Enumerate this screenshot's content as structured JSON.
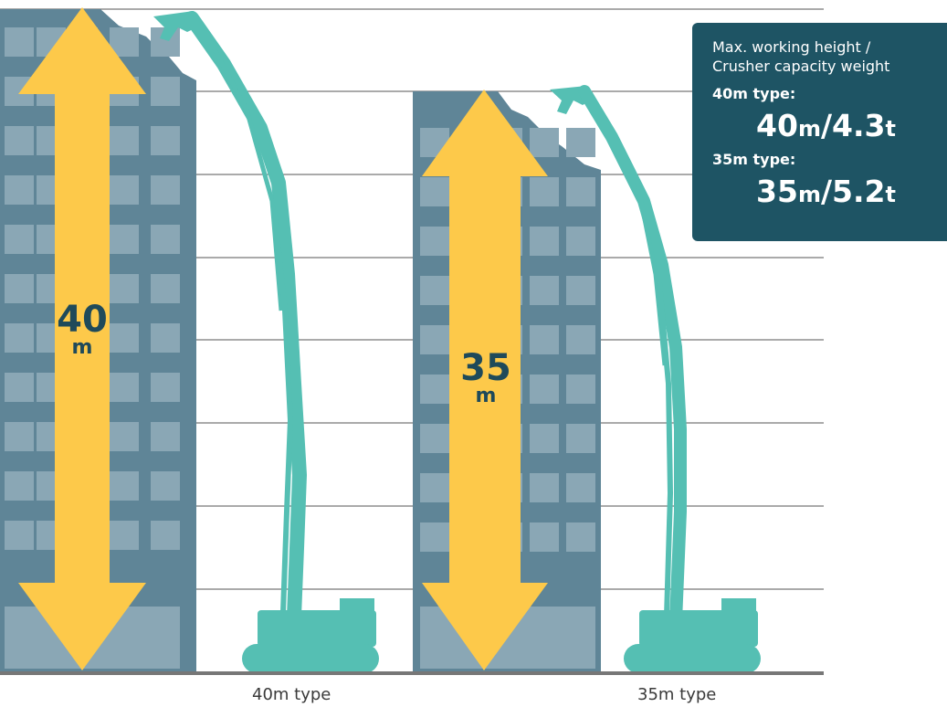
{
  "colors": {
    "building_dark": "#5f8597",
    "building_light": "#8aa7b5",
    "arrow": "#fdc94a",
    "machine": "#55bfb3",
    "ground": "#777777",
    "gridline": "#555555",
    "spec_box": "#1e5464",
    "label_text": "#1f4a5a"
  },
  "icons": [
    "building-40m-icon",
    "building-35m-icon",
    "height-arrow-icon",
    "demolition-machine-icon"
  ],
  "machines": [
    {
      "id": "40m",
      "height_label": "40",
      "unit": "m",
      "caption": "40m type"
    },
    {
      "id": "35m",
      "height_label": "35",
      "unit": "m",
      "caption": "35m type"
    }
  ],
  "spec_box": {
    "heading_line1": "Max. working height /",
    "heading_line2": "Crusher capacity weight",
    "rows": [
      {
        "type_label": "40m type:",
        "height": "40",
        "height_unit": "m",
        "sep": "/",
        "weight": "4.3",
        "weight_unit": "t"
      },
      {
        "type_label": "35m type:",
        "height": "35",
        "height_unit": "m",
        "sep": "/",
        "weight": "5.2",
        "weight_unit": "t"
      }
    ]
  }
}
